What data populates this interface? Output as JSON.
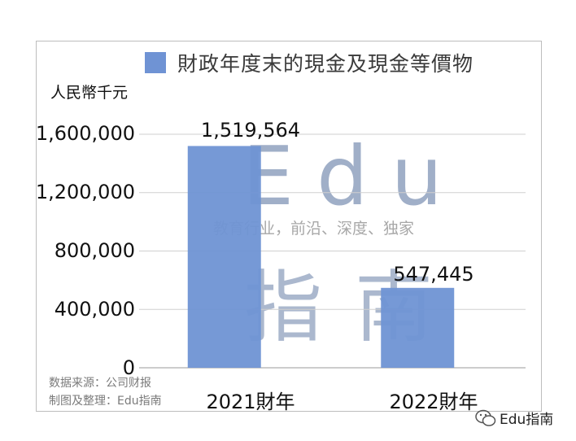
{
  "chart_data": {
    "type": "bar",
    "title": "財政年度末的現金及現金等價物",
    "ylabel": "人民幣千元",
    "categories": [
      "2021財年",
      "2022財年"
    ],
    "series": [
      {
        "name": "財政年度末的現金及現金等價物",
        "values": [
          1519564,
          547445
        ]
      }
    ],
    "data_labels": [
      "1,519,564",
      "547,445"
    ],
    "yticks": [
      "0",
      "400,000",
      "800,000",
      "1,200,000",
      "1,600,000"
    ],
    "ytick_values": [
      0,
      400000,
      800000,
      1200000,
      1600000
    ],
    "ylim": [
      0,
      1600000
    ],
    "grid": true,
    "legend_position": "top",
    "bar_color": "#6f93d4"
  },
  "source": {
    "line1": "数据来源：公司财报",
    "line2": "制图及整理：Edu指南"
  },
  "watermark": {
    "edu": "Edu",
    "tagline": "教育行业，前沿、深度、独家",
    "cn": "指南"
  },
  "brand": {
    "label": "Edu指南",
    "icon": "wechat-icon"
  }
}
